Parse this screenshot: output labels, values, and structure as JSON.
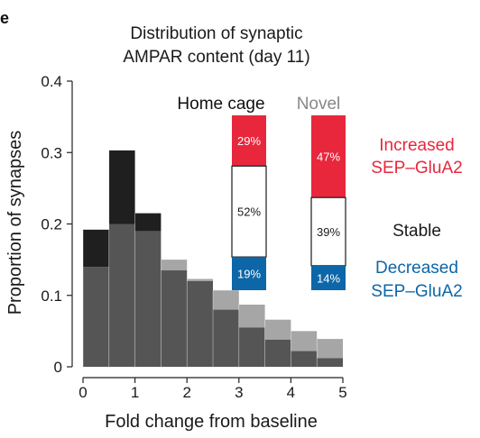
{
  "panel_label": "e",
  "chart_data": {
    "type": "bar",
    "title": "Distribution of synaptic AMPAR content (day 11)",
    "title_lines": [
      "Distribution of synaptic",
      "AMPAR content (day 11)"
    ],
    "xlabel": "Fold change from baseline",
    "ylabel": "Proportion of synapses",
    "xlim": [
      0,
      5
    ],
    "ylim": [
      0,
      0.4
    ],
    "x_ticks": [
      "0",
      "1",
      "2",
      "3",
      "4",
      "5"
    ],
    "y_ticks": [
      "0",
      "0.1",
      "0.2",
      "0.3",
      "0.4"
    ],
    "bin_width": 0.5,
    "bin_starts": [
      0,
      0.5,
      1,
      1.5,
      2,
      2.5,
      3,
      3.5,
      4,
      4.5
    ],
    "series": [
      {
        "name": "Home cage",
        "color": "#1f1f1f",
        "values": [
          0.192,
          0.303,
          0.215,
          0.135,
          0.12,
          0.08,
          0.055,
          0.038,
          0.022,
          0.012
        ]
      },
      {
        "name": "Novel",
        "color": "#a6a6a6",
        "values": [
          0.14,
          0.2,
          0.19,
          0.15,
          0.123,
          0.107,
          0.087,
          0.066,
          0.05,
          0.039
        ]
      }
    ],
    "overlap_color": "#555555",
    "composition": {
      "groups": [
        "Home cage",
        "Novel"
      ],
      "group_colors": [
        "#111111",
        "#888888"
      ],
      "categories": [
        {
          "name": "Increased SEP–GluA2",
          "label_lines": [
            "Increased",
            "SEP–GluA2"
          ],
          "color": "#e8273c",
          "label_color": "#e8273c",
          "values": [
            29,
            47
          ],
          "text_color": "#ffffff"
        },
        {
          "name": "Stable",
          "label_lines": [
            "Stable"
          ],
          "color": "#ffffff",
          "label_color": "#1a1a1a",
          "values": [
            52,
            39
          ],
          "text_color": "#1a1a1a"
        },
        {
          "name": "Decreased SEP–GluA2",
          "label_lines": [
            "Decreased",
            "SEP–GluA2"
          ],
          "color": "#0d66a8",
          "label_color": "#0d66a8",
          "values": [
            19,
            14
          ],
          "text_color": "#ffffff"
        }
      ],
      "value_suffix": "%"
    }
  }
}
